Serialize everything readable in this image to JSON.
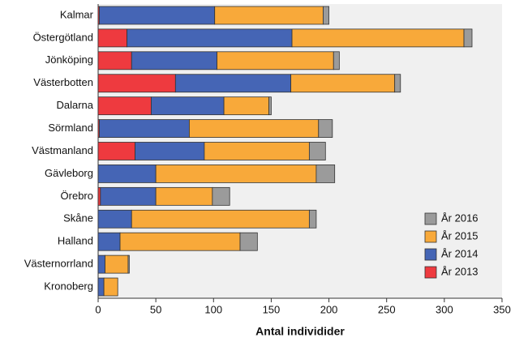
{
  "chart_data": {
    "type": "stacked-barh",
    "x_label": "Antal individider",
    "categories": [
      "Kalmar",
      "Östergötland",
      "Jönköping",
      "Västerbotten",
      "Dalarna",
      "Sörmland",
      "Västmanland",
      "Gävleborg",
      "Örebro",
      "Skåne",
      "Halland",
      "Västernorrland",
      "Kronoberg"
    ],
    "series": [
      {
        "name": "År 2013",
        "color": "#ee3a3f",
        "values": [
          1,
          25,
          29,
          67,
          46,
          1,
          32,
          0,
          2,
          0,
          0,
          0,
          0
        ]
      },
      {
        "name": "År 2014",
        "color": "#4565b5",
        "values": [
          100,
          143,
          74,
          100,
          63,
          78,
          60,
          50,
          48,
          29,
          19,
          6,
          5
        ]
      },
      {
        "name": "År 2015",
        "color": "#f8a93a",
        "values": [
          94,
          149,
          101,
          90,
          39,
          112,
          91,
          139,
          49,
          154,
          104,
          20,
          12
        ]
      },
      {
        "name": "År 2016",
        "color": "#9b9b9b",
        "values": [
          5,
          7,
          5,
          5,
          2,
          12,
          14,
          16,
          15,
          6,
          15,
          1,
          0
        ]
      }
    ],
    "xlim": [
      0,
      350
    ],
    "xticks": [
      0,
      50,
      100,
      150,
      200,
      250,
      300,
      350
    ],
    "legend": "lower right"
  }
}
